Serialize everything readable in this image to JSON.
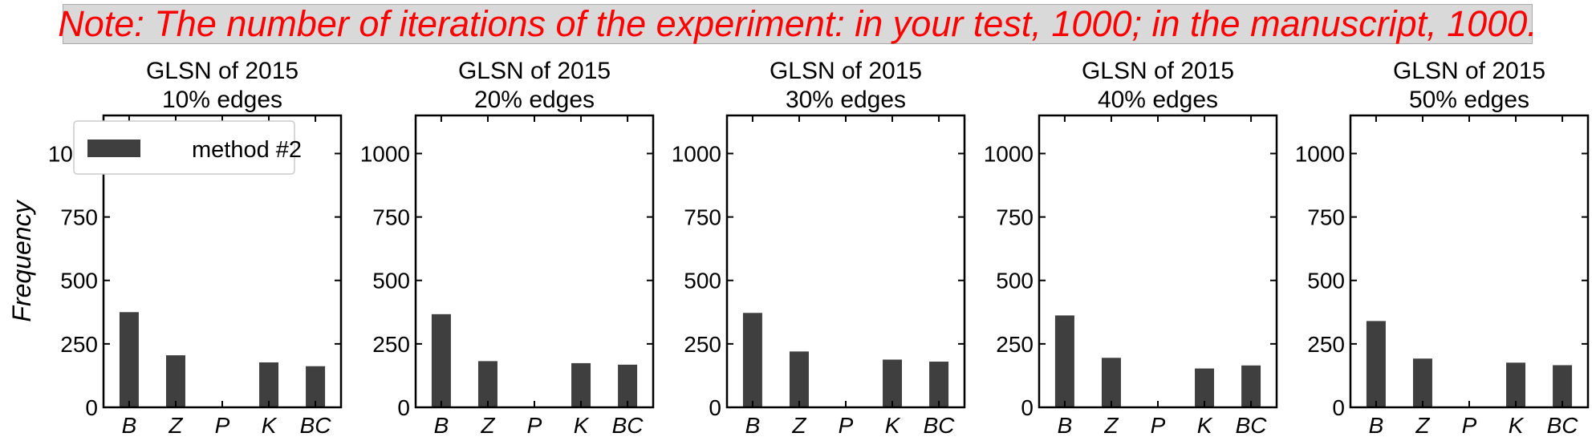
{
  "note": "Note: The number of iterations of the experiment: in your test, 1000; in the manuscript, 1000.",
  "colors": {
    "note_text": "#ff0000",
    "note_bg": "#d9d9d9",
    "bar": "#3f3f3f"
  },
  "chart_data": [
    {
      "type": "bar",
      "title": "GLSN of 2015\n10% edges",
      "ylabel": "Frequency",
      "xlabel": "",
      "categories": [
        "B",
        "Z",
        "P",
        "K",
        "BC"
      ],
      "series": [
        {
          "name": "method #2",
          "values": [
            375,
            205,
            0,
            177,
            162
          ]
        }
      ],
      "ylim": [
        0,
        1150
      ],
      "yticks": [
        0,
        250,
        500,
        750,
        1000
      ],
      "legend": "top-left",
      "grid": false
    },
    {
      "type": "bar",
      "title": "GLSN of 2015\n20% edges",
      "categories": [
        "B",
        "Z",
        "P",
        "K",
        "BC"
      ],
      "series": [
        {
          "values": [
            367,
            182,
            0,
            174,
            168
          ]
        }
      ],
      "ylim": [
        0,
        1150
      ],
      "yticks": [
        0,
        250,
        500,
        750,
        1000
      ],
      "grid": false
    },
    {
      "type": "bar",
      "title": "GLSN of 2015\n30% edges",
      "categories": [
        "B",
        "Z",
        "P",
        "K",
        "BC"
      ],
      "series": [
        {
          "values": [
            372,
            220,
            0,
            188,
            180
          ]
        }
      ],
      "ylim": [
        0,
        1150
      ],
      "yticks": [
        0,
        250,
        500,
        750,
        1000
      ],
      "grid": false
    },
    {
      "type": "bar",
      "title": "GLSN of 2015\n40% edges",
      "categories": [
        "B",
        "Z",
        "P",
        "K",
        "BC"
      ],
      "series": [
        {
          "values": [
            362,
            195,
            0,
            153,
            165
          ]
        }
      ],
      "ylim": [
        0,
        1150
      ],
      "yticks": [
        0,
        250,
        500,
        750,
        1000
      ],
      "grid": false
    },
    {
      "type": "bar",
      "title": "GLSN of 2015\n50% edges",
      "categories": [
        "B",
        "Z",
        "P",
        "K",
        "BC"
      ],
      "series": [
        {
          "values": [
            340,
            192,
            0,
            176,
            166
          ]
        }
      ],
      "ylim": [
        0,
        1150
      ],
      "yticks": [
        0,
        250,
        500,
        750,
        1000
      ],
      "grid": false
    }
  ]
}
